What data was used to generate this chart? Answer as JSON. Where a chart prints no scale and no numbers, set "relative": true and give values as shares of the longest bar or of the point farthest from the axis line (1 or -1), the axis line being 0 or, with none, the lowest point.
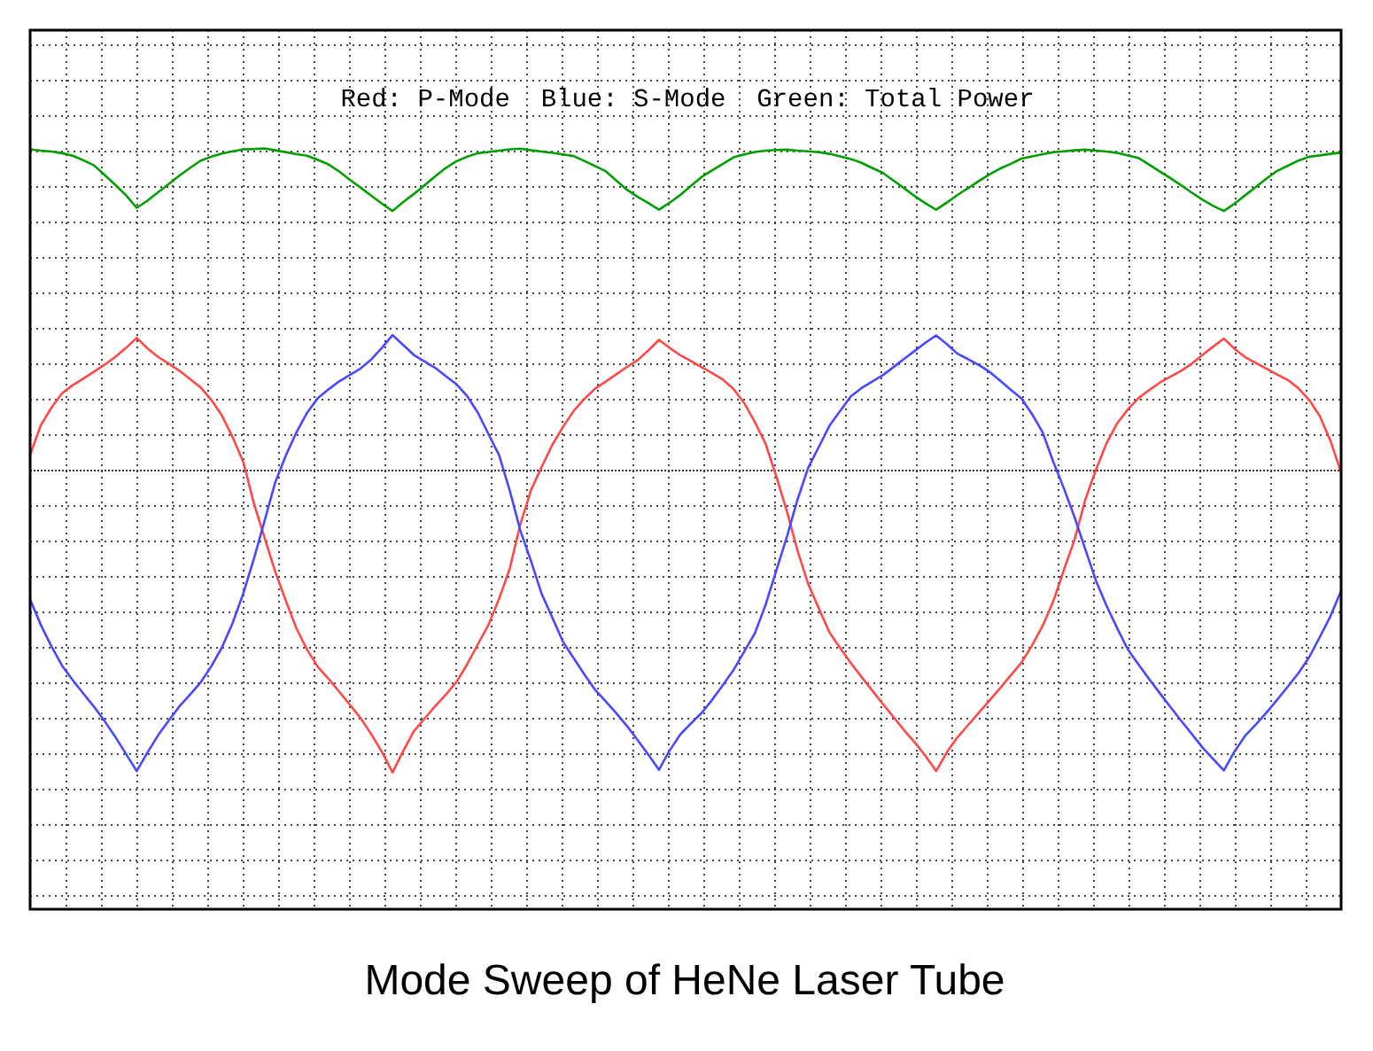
{
  "chart_data": {
    "type": "line",
    "title": "Mode Sweep of HeNe Laser Tube",
    "annotations": [
      "Red: P-Mode  Blue: S-Mode  Green: Total Power"
    ],
    "relative": true,
    "grid": true,
    "ref_lines": [
      {
        "axis": "y",
        "value": 0,
        "line_style": "dotted"
      }
    ],
    "categories": [
      null,
      null,
      null,
      null,
      null,
      null,
      null,
      null,
      null,
      null,
      null,
      null,
      null,
      null,
      null,
      null,
      null,
      null,
      null,
      null,
      null,
      null,
      null,
      null,
      null,
      null,
      null,
      null,
      null,
      null,
      null,
      null,
      null,
      null,
      null,
      null,
      null,
      null,
      null,
      null,
      null,
      null,
      null,
      null,
      null,
      null,
      null,
      null,
      null,
      null,
      null,
      null,
      null,
      null,
      null,
      null,
      null,
      null,
      null,
      null,
      null,
      null,
      null,
      null,
      null,
      null,
      null,
      null,
      null,
      null,
      null,
      null,
      null,
      null,
      null,
      null,
      null,
      null,
      null,
      null,
      null,
      null,
      null,
      null,
      null,
      null,
      null,
      null,
      null,
      null,
      null,
      null,
      null,
      null,
      null,
      null,
      null,
      null,
      null,
      null,
      null,
      null,
      null,
      null,
      null,
      null,
      null,
      null,
      null,
      null,
      null,
      null,
      null,
      null,
      null,
      null,
      null,
      null,
      null,
      null,
      null,
      null,
      null,
      null
    ],
    "series": [
      {
        "color": "#ff4848",
        "values": [
          0.046,
          0.138,
          0.193,
          0.238,
          0.263,
          0.284,
          0.305,
          0.327,
          0.351,
          0.379,
          0.41,
          0.378,
          0.351,
          0.33,
          0.308,
          0.282,
          0.256,
          0.217,
          0.168,
          0.101,
          0.024,
          -0.106,
          -0.212,
          -0.318,
          -0.409,
          -0.495,
          -0.561,
          -0.614,
          -0.651,
          -0.691,
          -0.732,
          -0.773,
          -0.823,
          -0.878,
          -0.942,
          -0.876,
          -0.814,
          -0.775,
          -0.736,
          -0.7,
          -0.661,
          -0.606,
          -0.544,
          -0.483,
          -0.402,
          -0.308,
          -0.169,
          -0.063,
          0.009,
          0.078,
          0.133,
          0.183,
          0.22,
          0.252,
          0.274,
          0.297,
          0.32,
          0.341,
          0.371,
          0.404,
          0.379,
          0.356,
          0.338,
          0.319,
          0.3,
          0.28,
          0.251,
          0.207,
          0.148,
          0.081,
          -0.02,
          -0.129,
          -0.252,
          -0.356,
          -0.432,
          -0.507,
          -0.555,
          -0.602,
          -0.645,
          -0.687,
          -0.729,
          -0.77,
          -0.811,
          -0.849,
          -0.891,
          -0.938,
          -0.88,
          -0.833,
          -0.795,
          -0.757,
          -0.719,
          -0.68,
          -0.64,
          -0.601,
          -0.547,
          -0.486,
          -0.409,
          -0.311,
          -0.217,
          -0.093,
          0,
          0.083,
          0.145,
          0.188,
          0.223,
          0.248,
          0.271,
          0.29,
          0.308,
          0.33,
          0.357,
          0.383,
          0.408,
          0.376,
          0.35,
          0.332,
          0.314,
          0.296,
          0.279,
          0.253,
          0.217,
          0.167,
          0.09,
          -0.009
        ]
      },
      {
        "color": "#4848ff",
        "values": [
          -0.404,
          -0.483,
          -0.55,
          -0.61,
          -0.655,
          -0.697,
          -0.738,
          -0.783,
          -0.832,
          -0.885,
          -0.938,
          -0.881,
          -0.827,
          -0.781,
          -0.737,
          -0.7,
          -0.662,
          -0.612,
          -0.553,
          -0.477,
          -0.385,
          -0.277,
          -0.159,
          -0.039,
          0.045,
          0.117,
          0.178,
          0.223,
          0.25,
          0.275,
          0.295,
          0.315,
          0.343,
          0.379,
          0.419,
          0.388,
          0.357,
          0.337,
          0.317,
          0.291,
          0.266,
          0.229,
          0.178,
          0.111,
          0.045,
          -0.065,
          -0.19,
          -0.285,
          -0.387,
          -0.461,
          -0.536,
          -0.587,
          -0.637,
          -0.685,
          -0.721,
          -0.758,
          -0.798,
          -0.842,
          -0.887,
          -0.934,
          -0.874,
          -0.824,
          -0.79,
          -0.757,
          -0.716,
          -0.67,
          -0.623,
          -0.566,
          -0.509,
          -0.421,
          -0.315,
          -0.209,
          -0.093,
          0.006,
          0.071,
          0.137,
          0.183,
          0.228,
          0.254,
          0.274,
          0.294,
          0.319,
          0.345,
          0.37,
          0.395,
          0.418,
          0.391,
          0.361,
          0.344,
          0.326,
          0.305,
          0.277,
          0.249,
          0.222,
          0.173,
          0.116,
          0.024,
          -0.059,
          -0.149,
          -0.248,
          -0.346,
          -0.424,
          -0.494,
          -0.56,
          -0.607,
          -0.652,
          -0.696,
          -0.739,
          -0.782,
          -0.823,
          -0.865,
          -0.901,
          -0.936,
          -0.877,
          -0.828,
          -0.793,
          -0.756,
          -0.716,
          -0.675,
          -0.633,
          -0.584,
          -0.521,
          -0.456,
          -0.377
        ]
      },
      {
        "color": "#009e00",
        "values": [
          0.997,
          0.993,
          0.99,
          0.985,
          0.977,
          0.963,
          0.947,
          0.917,
          0.886,
          0.854,
          0.815,
          0.837,
          0.863,
          0.889,
          0.915,
          0.939,
          0.962,
          0.974,
          0.984,
          0.991,
          0.997,
          0.998,
          1,
          0.994,
          0.988,
          0.982,
          0.977,
          0.964,
          0.95,
          0.928,
          0.902,
          0.878,
          0.853,
          0.828,
          0.805,
          0.833,
          0.858,
          0.885,
          0.913,
          0.939,
          0.96,
          0.974,
          0.985,
          0.989,
          0.993,
          0.997,
          0.999,
          0.994,
          0.99,
          0.986,
          0.981,
          0.976,
          0.961,
          0.945,
          0.929,
          0.9,
          0.871,
          0.849,
          0.83,
          0.809,
          0.831,
          0.855,
          0.883,
          0.911,
          0.932,
          0.952,
          0.972,
          0.981,
          0.989,
          0.993,
          0.995,
          0.996,
          0.993,
          0.991,
          0.988,
          0.983,
          0.975,
          0.967,
          0.955,
          0.939,
          0.924,
          0.9,
          0.876,
          0.851,
          0.829,
          0.809,
          0.831,
          0.855,
          0.876,
          0.898,
          0.919,
          0.937,
          0.952,
          0.968,
          0.975,
          0.982,
          0.988,
          0.991,
          0.994,
          0.996,
          0.993,
          0.99,
          0.986,
          0.978,
          0.97,
          0.949,
          0.928,
          0.907,
          0.885,
          0.862,
          0.84,
          0.821,
          0.805,
          0.828,
          0.854,
          0.88,
          0.906,
          0.93,
          0.946,
          0.962,
          0.974,
          0.978,
          0.983,
          0.987
        ]
      }
    ]
  }
}
